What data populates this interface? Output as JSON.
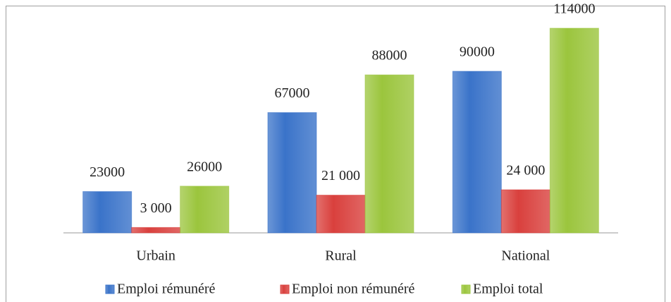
{
  "chart_data": {
    "type": "bar",
    "categories": [
      "Urbain",
      "Rural",
      "National"
    ],
    "series": [
      {
        "name": "Emploi rémunéré",
        "color": "#3a73c9",
        "values": [
          23000,
          67000,
          90000
        ]
      },
      {
        "name": "Emploi non rémunéré",
        "color": "#d9403d",
        "values": [
          3000,
          21000,
          24000
        ],
        "value_labels": [
          "3 000",
          "21 000",
          "24 000"
        ]
      },
      {
        "name": "Emploi total",
        "color": "#9bc53d",
        "values": [
          26000,
          88000,
          114000
        ]
      }
    ],
    "legend": "bottom"
  }
}
